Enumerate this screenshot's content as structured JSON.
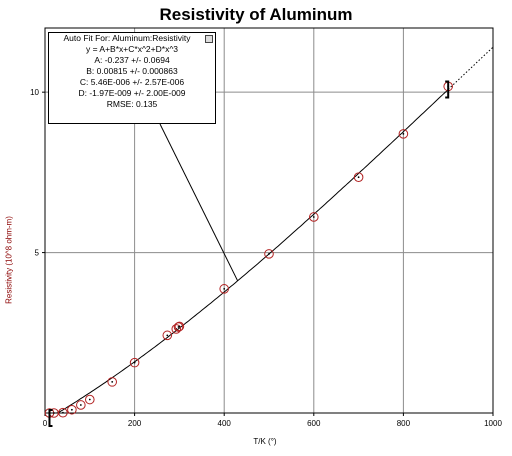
{
  "chart_data": {
    "type": "scatter",
    "title": "Resistivity of Aluminum",
    "xlabel": "T/K (°)",
    "ylabel": "Resistivity (10^8 ohm-m)",
    "xlim": [
      0,
      1000
    ],
    "ylim": [
      0,
      12
    ],
    "x_ticks": [
      0,
      200,
      400,
      600,
      800,
      1000
    ],
    "y_ticks": [
      5,
      10
    ],
    "grid": true,
    "series": [
      {
        "marker": "open-circle",
        "color": "#b22222",
        "points": [
          {
            "x": 10,
            "y": 0.0
          },
          {
            "x": 20,
            "y": 0.0
          },
          {
            "x": 40,
            "y": 0.01
          },
          {
            "x": 60,
            "y": 0.1
          },
          {
            "x": 80,
            "y": 0.25
          },
          {
            "x": 100,
            "y": 0.42
          },
          {
            "x": 150,
            "y": 0.97
          },
          {
            "x": 200,
            "y": 1.57
          },
          {
            "x": 273,
            "y": 2.42
          },
          {
            "x": 293,
            "y": 2.62
          },
          {
            "x": 298,
            "y": 2.68
          },
          {
            "x": 300,
            "y": 2.7
          },
          {
            "x": 400,
            "y": 3.87
          },
          {
            "x": 500,
            "y": 4.96
          },
          {
            "x": 600,
            "y": 6.11
          },
          {
            "x": 700,
            "y": 7.35
          },
          {
            "x": 800,
            "y": 8.7
          },
          {
            "x": 900,
            "y": 10.18
          }
        ]
      }
    ],
    "fit": {
      "header": "Auto Fit For:  Aluminum:Resistivity",
      "equation": "y = A+B*x+C*x^2+D*x^3",
      "A_text": "A: -0.237 +/- 0.0694",
      "B_text": "B: 0.00815 +/- 0.000863",
      "C_text": "C: 5.46E-006 +/- 2.57E-006",
      "D_text": "D: -1.97E-009 +/- 2.00E-009",
      "rmse_text": "RMSE: 0.135",
      "coefficients": {
        "A": -0.237,
        "B": 0.00815,
        "C": 5.46e-06,
        "D": -1.97e-09
      },
      "x_range": [
        10,
        900
      ],
      "extrapolate_to": 1000
    }
  }
}
